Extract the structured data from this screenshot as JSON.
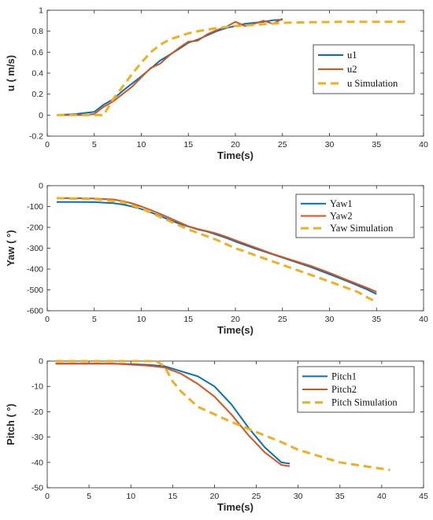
{
  "colors": {
    "series1": "#0072BD",
    "series2": "#D95319",
    "simulation": "#EDB120",
    "axis": "#262626"
  },
  "chart_data": [
    {
      "type": "line",
      "xlabel": "Time(s)",
      "ylabel": "u ( m/s)",
      "xlim": [
        0,
        40
      ],
      "ylim": [
        -0.2,
        1
      ],
      "xticks": [
        0,
        5,
        10,
        15,
        20,
        25,
        30,
        35,
        40
      ],
      "yticks": [
        -0.2,
        0,
        0.2,
        0.4,
        0.6,
        0.8,
        1
      ],
      "ytick_labels": [
        "-0.2",
        "0",
        "0.2",
        "0.4",
        "0.6",
        "0.8",
        "1"
      ],
      "legend_position": "right-middle",
      "series": [
        {
          "name": "u1",
          "style": "solid",
          "color_key": "series1",
          "x": [
            1,
            3,
            5,
            6,
            7,
            8,
            10,
            12,
            14,
            15,
            16,
            17,
            18,
            19,
            20,
            21,
            22,
            23,
            24,
            25
          ],
          "y": [
            0,
            0.01,
            0.03,
            0.1,
            0.15,
            0.23,
            0.37,
            0.52,
            0.63,
            0.69,
            0.72,
            0.76,
            0.8,
            0.83,
            0.85,
            0.87,
            0.88,
            0.89,
            0.905,
            0.91
          ]
        },
        {
          "name": "u2",
          "style": "solid",
          "color_key": "series2",
          "x": [
            1,
            4,
            5,
            6,
            7,
            8,
            9,
            10,
            11,
            12,
            13,
            14,
            15,
            16,
            17,
            18,
            19,
            20,
            21,
            22,
            23,
            24,
            25
          ],
          "y": [
            0,
            0,
            0.01,
            0.08,
            0.13,
            0.2,
            0.27,
            0.36,
            0.45,
            0.49,
            0.57,
            0.64,
            0.7,
            0.71,
            0.77,
            0.81,
            0.84,
            0.89,
            0.85,
            0.87,
            0.9,
            0.87,
            0.92
          ]
        },
        {
          "name": "u Simulation",
          "style": "dashed",
          "color_key": "simulation",
          "x": [
            1,
            5,
            6,
            7,
            8,
            9,
            10,
            11,
            12,
            13,
            14,
            15,
            16,
            18,
            20,
            22,
            25,
            28,
            32,
            36,
            38.5
          ],
          "y": [
            0,
            0,
            0,
            0.15,
            0.27,
            0.39,
            0.5,
            0.6,
            0.67,
            0.72,
            0.75,
            0.78,
            0.8,
            0.83,
            0.85,
            0.86,
            0.88,
            0.885,
            0.89,
            0.89,
            0.89
          ]
        }
      ]
    },
    {
      "type": "line",
      "xlabel": "Time(s)",
      "ylabel": "Yaw ( °)",
      "xlim": [
        0,
        40
      ],
      "ylim": [
        -600,
        0
      ],
      "xticks": [
        0,
        5,
        10,
        15,
        20,
        25,
        30,
        35,
        40
      ],
      "yticks": [
        -600,
        -500,
        -400,
        -300,
        -200,
        -100,
        0
      ],
      "ytick_labels": [
        "-600",
        "-500",
        "-400",
        "-300",
        "-200",
        "-100",
        "0"
      ],
      "legend_position": "top-right",
      "series": [
        {
          "name": "Yaw1",
          "style": "solid",
          "color_key": "series1",
          "x": [
            1,
            3,
            5,
            7,
            8,
            9,
            10,
            11,
            12,
            13,
            14,
            15,
            16,
            17,
            18,
            19,
            20,
            22,
            24,
            26,
            28,
            30,
            32,
            34,
            35
          ],
          "y": [
            -78,
            -78,
            -79,
            -84,
            -90,
            -100,
            -112,
            -128,
            -145,
            -165,
            -182,
            -196,
            -210,
            -220,
            -235,
            -250,
            -268,
            -300,
            -330,
            -360,
            -390,
            -425,
            -460,
            -498,
            -520
          ]
        },
        {
          "name": "Yaw2",
          "style": "solid",
          "color_key": "series2",
          "x": [
            1,
            3,
            5,
            7,
            8,
            9,
            10,
            11,
            12,
            13,
            14,
            15,
            16,
            17,
            18,
            19,
            20,
            22,
            24,
            26,
            28,
            30,
            32,
            34,
            35
          ],
          "y": [
            -60,
            -60,
            -62,
            -66,
            -74,
            -85,
            -100,
            -117,
            -135,
            -155,
            -175,
            -195,
            -208,
            -218,
            -230,
            -245,
            -262,
            -295,
            -328,
            -357,
            -385,
            -418,
            -455,
            -490,
            -510
          ]
        },
        {
          "name": "Yaw Simulation",
          "style": "dashed",
          "color_key": "simulation",
          "x": [
            1,
            5,
            8,
            10,
            12,
            15,
            18,
            20,
            25,
            30,
            33,
            35
          ],
          "y": [
            -60,
            -65,
            -78,
            -110,
            -150,
            -210,
            -260,
            -300,
            -380,
            -460,
            -510,
            -560
          ]
        }
      ]
    },
    {
      "type": "line",
      "xlabel": "Time(s)",
      "ylabel": "Pitch ( °)",
      "xlim": [
        0,
        45
      ],
      "ylim": [
        -50,
        0
      ],
      "xticks": [
        0,
        5,
        10,
        15,
        20,
        25,
        30,
        35,
        40,
        45
      ],
      "yticks": [
        -50,
        -40,
        -30,
        -20,
        -10,
        0
      ],
      "ytick_labels": [
        "-50",
        "-40",
        "-30",
        "-20",
        "-10",
        "0"
      ],
      "legend_position": "top-right",
      "series": [
        {
          "name": "Pitch1",
          "style": "solid",
          "color_key": "series1",
          "x": [
            1,
            5,
            8,
            10,
            12,
            14,
            16,
            18,
            20,
            22,
            24,
            26,
            28,
            29
          ],
          "y": [
            -1,
            -1,
            -1,
            -1.2,
            -1.5,
            -2,
            -4,
            -6,
            -10,
            -17,
            -26,
            -34,
            -40,
            -40.5
          ]
        },
        {
          "name": "Pitch2",
          "style": "solid",
          "color_key": "series2",
          "x": [
            1,
            5,
            8,
            10,
            12,
            14,
            16,
            18,
            20,
            22,
            24,
            26,
            28,
            29
          ],
          "y": [
            -1,
            -1,
            -1,
            -1.4,
            -1.8,
            -2.5,
            -5,
            -9,
            -14,
            -21,
            -29,
            -36,
            -41,
            -41.5
          ]
        },
        {
          "name": "Pitch Simulation",
          "style": "dashed",
          "color_key": "simulation",
          "x": [
            1,
            5,
            10,
            13,
            14,
            15,
            16,
            18,
            20,
            22,
            25,
            28,
            30,
            35,
            40,
            41
          ],
          "y": [
            0,
            0,
            0,
            0,
            -2,
            -8,
            -12,
            -18,
            -21,
            -24,
            -28,
            -32,
            -35,
            -40,
            -42.5,
            -43
          ]
        }
      ]
    }
  ]
}
